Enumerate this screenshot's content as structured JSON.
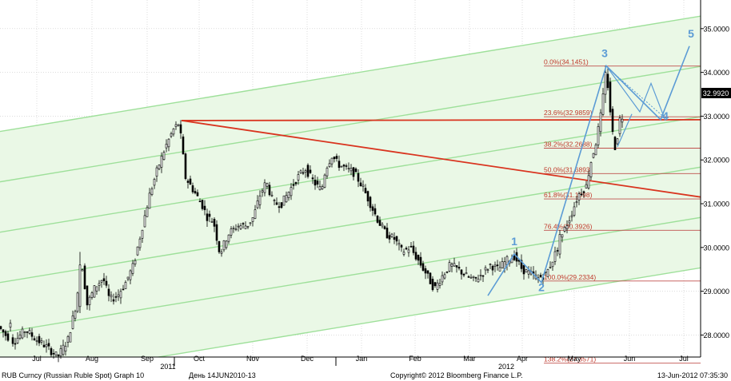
{
  "chart_data": {
    "type": "candlestick",
    "ylim": [
      27.35,
      35.0
    ],
    "y_ticks": [
      "28.0000",
      "29.0000",
      "30.0000",
      "31.0000",
      "32.0000",
      "33.0000",
      "34.0000",
      "35.0000"
    ],
    "x_ticks": [
      "Jul",
      "Aug",
      "Sep",
      "Oct",
      "Nov",
      "Dec",
      "Jan",
      "Feb",
      "Mar",
      "Apr",
      "May",
      "Jun",
      "Jul"
    ],
    "year_labels": [
      "2011",
      "2012"
    ],
    "last_price": "32.9920",
    "price_anchors": [
      [
        0,
        28.22
      ],
      [
        10,
        28.0
      ],
      [
        20,
        27.85
      ],
      [
        35,
        28.12
      ],
      [
        48,
        27.9
      ],
      [
        60,
        27.75
      ],
      [
        75,
        27.5
      ],
      [
        88,
        27.9
      ],
      [
        98,
        28.7
      ],
      [
        105,
        29.7
      ],
      [
        112,
        28.7
      ],
      [
        122,
        29.1
      ],
      [
        132,
        29.3
      ],
      [
        140,
        28.8
      ],
      [
        150,
        28.9
      ],
      [
        160,
        29.2
      ],
      [
        170,
        29.6
      ],
      [
        180,
        30.4
      ],
      [
        190,
        31.2
      ],
      [
        200,
        31.8
      ],
      [
        210,
        32.3
      ],
      [
        220,
        32.7
      ],
      [
        227,
        32.85
      ],
      [
        235,
        31.6
      ],
      [
        245,
        31.3
      ],
      [
        255,
        31.0
      ],
      [
        262,
        30.7
      ],
      [
        270,
        30.6
      ],
      [
        278,
        29.85
      ],
      [
        288,
        30.3
      ],
      [
        300,
        30.5
      ],
      [
        312,
        30.5
      ],
      [
        320,
        30.7
      ],
      [
        328,
        31.2
      ],
      [
        336,
        31.5
      ],
      [
        345,
        31.0
      ],
      [
        355,
        31.0
      ],
      [
        365,
        31.3
      ],
      [
        375,
        31.6
      ],
      [
        385,
        31.8
      ],
      [
        395,
        31.5
      ],
      [
        405,
        31.3
      ],
      [
        410,
        31.8
      ],
      [
        418,
        32.1
      ],
      [
        426,
        31.9
      ],
      [
        436,
        31.8
      ],
      [
        446,
        31.7
      ],
      [
        456,
        31.4
      ],
      [
        466,
        31.0
      ],
      [
        476,
        30.6
      ],
      [
        486,
        30.3
      ],
      [
        496,
        30.2
      ],
      [
        506,
        29.9
      ],
      [
        516,
        30.0
      ],
      [
        526,
        29.7
      ],
      [
        536,
        29.4
      ],
      [
        546,
        29.05
      ],
      [
        556,
        29.35
      ],
      [
        566,
        29.6
      ],
      [
        576,
        29.5
      ],
      [
        586,
        29.35
      ],
      [
        596,
        29.25
      ],
      [
        606,
        29.4
      ],
      [
        616,
        29.6
      ],
      [
        626,
        29.5
      ],
      [
        636,
        29.7
      ],
      [
        646,
        29.8
      ],
      [
        656,
        29.5
      ],
      [
        666,
        29.4
      ],
      [
        676,
        29.3
      ],
      [
        686,
        29.4
      ],
      [
        696,
        29.8
      ],
      [
        706,
        30.3
      ],
      [
        716,
        30.7
      ],
      [
        726,
        31.2
      ],
      [
        736,
        31.4
      ],
      [
        741,
        31.9
      ],
      [
        748,
        32.4
      ],
      [
        754,
        33.0
      ],
      [
        758,
        33.6
      ],
      [
        761,
        34.1
      ],
      [
        765,
        33.3
      ],
      [
        769,
        32.6
      ],
      [
        773,
        32.2
      ],
      [
        777,
        32.9
      ],
      [
        780,
        32.99
      ]
    ],
    "candles": [
      [
        13,
        28.18,
        28.27,
        28.35,
        28.08
      ],
      [
        29,
        27.92,
        28.05,
        28.14,
        27.84
      ],
      [
        100,
        28.65,
        29.6,
        29.9,
        28.5
      ],
      [
        200,
        31.7,
        31.95,
        32.15,
        31.55
      ],
      [
        420,
        31.95,
        32.18,
        32.3,
        31.85
      ],
      [
        600,
        29.3,
        29.25,
        29.5,
        29.1
      ],
      [
        700,
        29.85,
        30.3,
        30.4,
        29.75
      ],
      [
        757,
        33.5,
        34.0,
        34.15,
        33.3
      ]
    ],
    "channel": {
      "lines": [
        [
          [
            0,
            26.9
          ],
          [
            914,
            29.65
          ]
        ],
        [
          [
            0,
            28.05
          ],
          [
            914,
            30.8
          ]
        ],
        [
          [
            0,
            29.2
          ],
          [
            914,
            31.95
          ]
        ],
        [
          [
            0,
            30.35
          ],
          [
            914,
            33.1
          ]
        ],
        [
          [
            0,
            31.5
          ],
          [
            914,
            34.25
          ]
        ],
        [
          [
            0,
            32.65
          ],
          [
            914,
            35.4
          ]
        ]
      ],
      "shading": [
        [
          0,
          26.9
        ],
        [
          914,
          29.65
        ],
        [
          914,
          35.4
        ],
        [
          0,
          32.65
        ]
      ]
    },
    "trendlines": [
      [
        [
          227,
          32.9
        ],
        [
          914,
          31.05
        ]
      ],
      [
        [
          227,
          32.9
        ],
        [
          914,
          32.92
        ]
      ]
    ],
    "fibonacci": {
      "x_start": 680,
      "x_end": 876,
      "levels": [
        {
          "label": "0.0%(34.1451)",
          "value": 34.1451
        },
        {
          "label": "23.6%(32.9859)",
          "value": 32.9859
        },
        {
          "label": "38.2%(32.2688)",
          "value": 32.2688
        },
        {
          "label": "50.0%(31.6893)",
          "value": 31.6893
        },
        {
          "label": "61.8%(31.1098)",
          "value": 31.1098
        },
        {
          "label": "76.4%(30.3926)",
          "value": 30.3926
        },
        {
          "label": "100.0%(29.2334)",
          "value": 29.2334
        },
        {
          "label": "138.2%(27.3571)",
          "value": 27.3571
        }
      ]
    },
    "wave_count": {
      "points": [
        [
          610,
          28.9
        ],
        [
          643,
          29.85
        ],
        [
          677,
          29.2
        ],
        [
          758,
          34.15
        ],
        [
          826,
          32.92
        ],
        [
          862,
          34.6
        ]
      ],
      "labels": [
        {
          "text": "1",
          "x": 643,
          "y": 30.05
        },
        {
          "text": "2",
          "x": 677,
          "y": 29.0
        },
        {
          "text": "3",
          "x": 756,
          "y": 34.35
        },
        {
          "text": "4",
          "x": 832,
          "y": 32.92
        },
        {
          "text": "5",
          "x": 864,
          "y": 34.8
        }
      ],
      "alt_path": [
        [
          760,
          34.1
        ],
        [
          800,
          33.1
        ],
        [
          814,
          33.75
        ],
        [
          832,
          32.9
        ]
      ],
      "alt_path_2": [
        [
          772,
          32.3
        ],
        [
          790,
          33.05
        ]
      ]
    }
  },
  "footer": {
    "series": "RUB Curncy (Russian Ruble Spot) Graph 10",
    "period": "День 14JUN2010-13",
    "copyright": "Copyright© 2012 Bloomberg Finance L.P.",
    "timestamp": "13-Jun-2012 07:35:30"
  }
}
